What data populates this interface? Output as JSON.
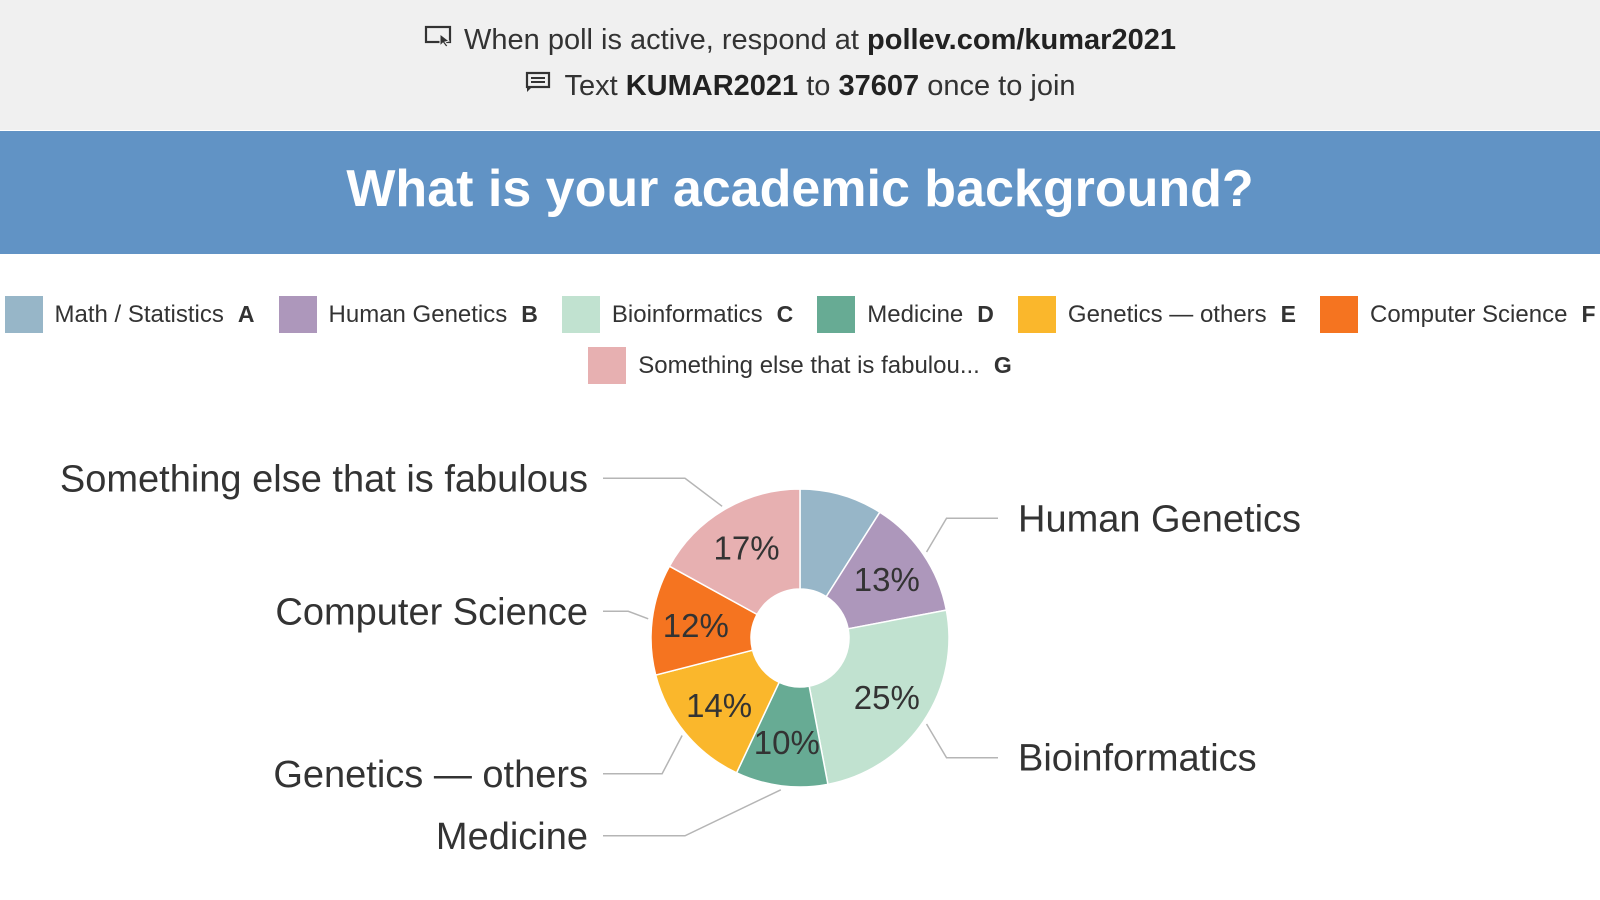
{
  "header": {
    "line1_prefix": "When poll is active, respond at",
    "line1_url": "pollev.com/kumar2021",
    "line2_prefix": "Text",
    "line2_keyword": "KUMAR2021",
    "line2_mid": "to",
    "line2_number": "37607",
    "line2_suffix": "once to join",
    "icons": [
      "screen-pointer-icon",
      "sms-message-icon"
    ]
  },
  "title": "What is your academic background?",
  "colors": {
    "topbar": "#f0f0f0",
    "titlebar": "#6193c5"
  },
  "legend": [
    {
      "label": "Math / Statistics",
      "letter": "A",
      "color": "#97b6c8"
    },
    {
      "label": "Human Genetics",
      "letter": "B",
      "color": "#ad97bb"
    },
    {
      "label": "Bioinformatics",
      "letter": "C",
      "color": "#c1e2d0"
    },
    {
      "label": "Medicine",
      "letter": "D",
      "color": "#67ab94"
    },
    {
      "label": "Genetics — others",
      "letter": "E",
      "color": "#fab72c"
    },
    {
      "label": "Computer Science",
      "letter": "F",
      "color": "#f57420"
    },
    {
      "label": "Something else that is fabulou...",
      "letter": "G",
      "color": "#e7b0b1"
    }
  ],
  "chart_data": {
    "type": "pie",
    "donut": true,
    "categories": [
      "Math / Statistics",
      "Human Genetics",
      "Bioinformatics",
      "Medicine",
      "Genetics — others",
      "Computer Science",
      "Something else that is fabulous"
    ],
    "values": [
      9,
      13,
      25,
      10,
      14,
      12,
      17
    ],
    "data_labels": [
      "",
      "13%",
      "25%",
      "10%",
      "14%",
      "12%",
      "17%"
    ],
    "slice_labels": [
      "",
      "Human Genetics",
      "Bioinformatics",
      "Medicine",
      "Genetics — others",
      "Computer Science",
      "Something else that is fabulous"
    ],
    "colors": [
      "#97b6c8",
      "#ad97bb",
      "#c1e2d0",
      "#67ab94",
      "#fab72c",
      "#f57420",
      "#e7b0b1"
    ],
    "unit": "%"
  }
}
